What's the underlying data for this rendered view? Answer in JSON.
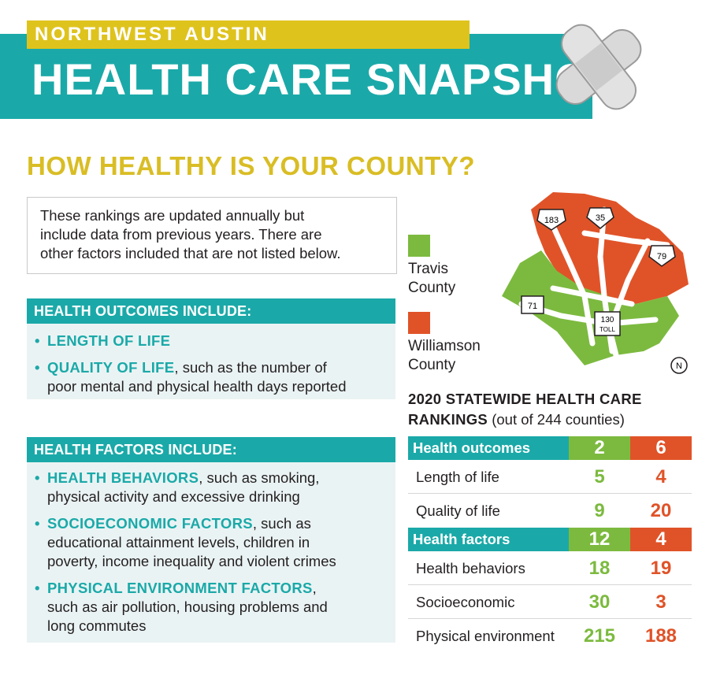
{
  "header": {
    "kicker": "NORTHWEST AUSTIN",
    "title": "HEALTH CARE SNAPSHOT"
  },
  "section_title": "HOW HEALTHY IS YOUR COUNTY?",
  "intro": {
    "line1": "These rankings are updated annually but",
    "line2": "include data from previous years. There are",
    "line3": "other factors included that are not listed below."
  },
  "outcomes_panel": {
    "heading": "HEALTH OUTCOMES INCLUDE:",
    "items": [
      {
        "emphasis": "LENGTH OF LIFE",
        "lines": []
      },
      {
        "emphasis": "QUALITY OF LIFE",
        "rest": ", such as the number of",
        "lines": [
          "poor mental and physical health days reported"
        ]
      }
    ]
  },
  "factors_panel": {
    "heading": "HEALTH FACTORS INCLUDE:",
    "items": [
      {
        "emphasis": "HEALTH BEHAVIORS",
        "rest": ", such as smoking,",
        "lines": [
          "physical activity and excessive drinking"
        ]
      },
      {
        "emphasis": "SOCIOECONOMIC FACTORS",
        "rest": ", such as",
        "lines": [
          "educational attainment levels, children in",
          "poverty, income inequality and violent crimes"
        ]
      },
      {
        "emphasis": "PHYSICAL ENVIRONMENT FACTORS",
        "rest": ",",
        "lines": [
          "such as air pollution, housing problems and",
          "long commutes"
        ]
      }
    ]
  },
  "legend": {
    "travis": {
      "line1": "Travis",
      "line2": "County",
      "color": "#7cba3f"
    },
    "williamson": {
      "line1": "Williamson",
      "line2": "County",
      "color": "#e05328"
    }
  },
  "map": {
    "routes": [
      "183",
      "35",
      "79",
      "71",
      "130",
      "TOLL"
    ],
    "north": "N"
  },
  "rankings": {
    "title_bold": "2020 STATEWIDE HEALTH CARE",
    "title_bold2": "RANKINGS",
    "title_rest": " (out of 244 counties)",
    "rows": [
      {
        "label": "Health outcomes",
        "travis": "2",
        "williamson": "6",
        "header": true
      },
      {
        "label": "Length of life",
        "travis": "5",
        "williamson": "4"
      },
      {
        "label": "Quality of life",
        "travis": "9",
        "williamson": "20"
      },
      {
        "label": "Health factors",
        "travis": "12",
        "williamson": "4",
        "header": true
      },
      {
        "label": "Health behaviors",
        "travis": "18",
        "williamson": "19"
      },
      {
        "label": "Socioeconomic",
        "travis": "30",
        "williamson": "3"
      },
      {
        "label": "Physical environment",
        "travis": "215",
        "williamson": "188"
      }
    ]
  },
  "colors": {
    "teal": "#1aa9a8",
    "yellow": "#dfc31d",
    "green": "#7cba3f",
    "orange": "#e05328"
  }
}
